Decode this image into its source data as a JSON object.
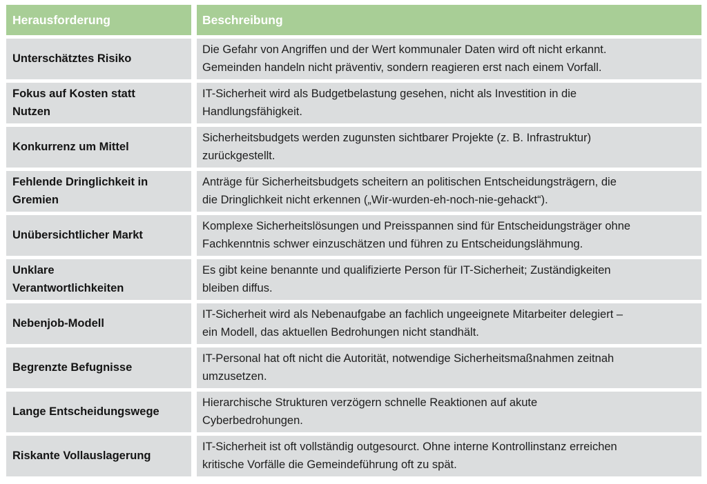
{
  "table": {
    "headers": [
      "Herausforderung",
      "Beschreibung"
    ],
    "rows": [
      {
        "challenge": [
          "Unterschätztes Risiko"
        ],
        "description": [
          "Die Gefahr von Angriffen und der Wert kommunaler Daten wird oft nicht erkannt.",
          "Gemeinden handeln nicht präventiv, sondern reagieren erst nach einem Vorfall."
        ]
      },
      {
        "challenge": [
          "Fokus auf Kosten statt",
          "Nutzen"
        ],
        "description": [
          "IT-Sicherheit wird als Budgetbelastung gesehen, nicht als Investition in die",
          "Handlungsfähigkeit."
        ]
      },
      {
        "challenge": [
          "Konkurrenz um Mittel"
        ],
        "description": [
          "Sicherheitsbudgets werden zugunsten sichtbarer Projekte (z. B. Infrastruktur)",
          "zurückgestellt."
        ]
      },
      {
        "challenge": [
          "Fehlende Dringlichkeit in",
          "Gremien"
        ],
        "description": [
          "Anträge für Sicherheitsbudgets scheitern an politischen Entscheidungsträgern, die",
          "die Dringlichkeit nicht erkennen („Wir-wurden-eh-noch-nie-gehackt“)."
        ]
      },
      {
        "challenge": [
          "Unübersichtlicher Markt"
        ],
        "description": [
          "Komplexe Sicherheitslösungen und Preisspannen sind für Entscheidungsträger ohne",
          "Fachkenntnis schwer einzuschätzen und führen zu Entscheidungslähmung."
        ]
      },
      {
        "challenge": [
          "Unklare",
          "Verantwortlichkeiten"
        ],
        "description": [
          "Es gibt keine benannte und qualifizierte Person für IT-Sicherheit; Zuständigkeiten",
          "bleiben diffus."
        ]
      },
      {
        "challenge": [
          "Nebenjob-Modell"
        ],
        "description": [
          "IT-Sicherheit wird als Nebenaufgabe an fachlich ungeeignete Mitarbeiter delegiert –",
          "ein Modell, das aktuellen Bedrohungen nicht standhält."
        ]
      },
      {
        "challenge": [
          "Begrenzte Befugnisse"
        ],
        "description": [
          "IT-Personal hat oft nicht die Autorität, notwendige Sicherheitsmaßnahmen zeitnah",
          "umzusetzen."
        ]
      },
      {
        "challenge": [
          "Lange Entscheidungswege"
        ],
        "description": [
          "Hierarchische Strukturen verzögern schnelle Reaktionen auf akute",
          "Cyberbedrohungen."
        ]
      },
      {
        "challenge": [
          "Riskante Vollauslagerung"
        ],
        "description": [
          "IT-Sicherheit ist oft vollständig outgesourct. Ohne interne Kontrollinstanz erreichen",
          "kritische Vorfälle die Gemeindeführung oft zu spät."
        ]
      }
    ]
  },
  "colors": {
    "header_bg": "#A8CE96",
    "header_text": "#FFFFFF",
    "row_bg": "#DBDDDE",
    "text": "#1E1E1E",
    "text_strong": "#141414"
  }
}
